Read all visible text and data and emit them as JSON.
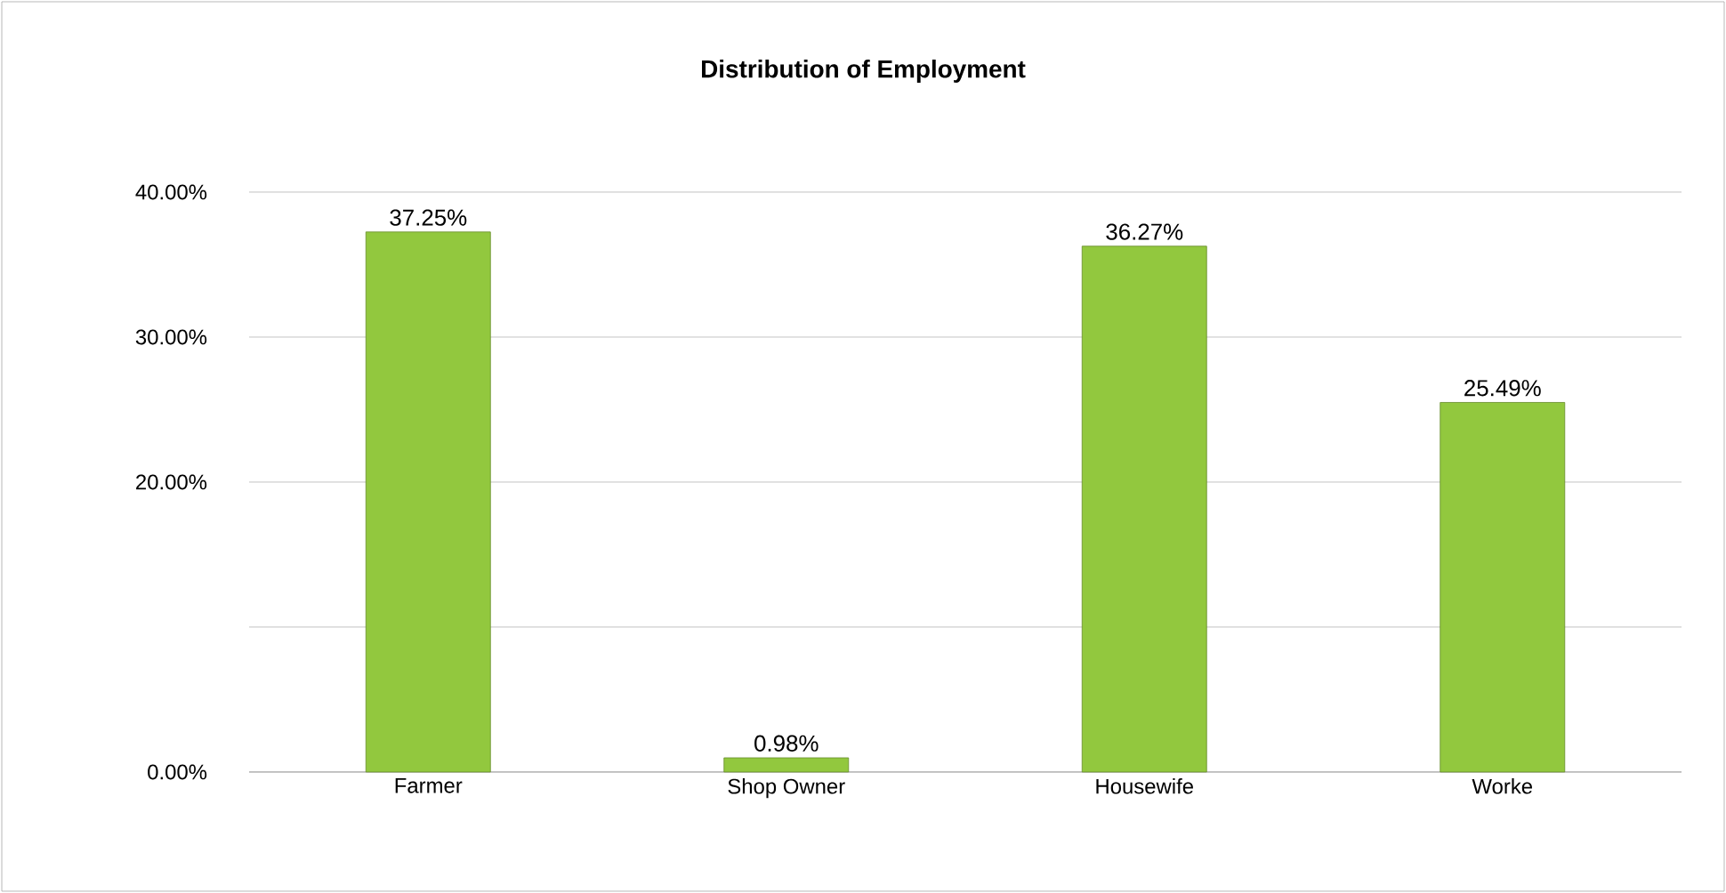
{
  "chart_data": {
    "type": "bar",
    "title": "Distribution of Employment",
    "categories": [
      "Farmer",
      "Shop Owner",
      "Housewife",
      "Worke"
    ],
    "values": [
      37.25,
      0.98,
      36.27,
      25.49
    ],
    "value_labels": [
      "37.25%",
      "0.98%",
      "36.27%",
      "25.49%"
    ],
    "color": "#92c83e",
    "ylim": [
      0,
      40
    ],
    "yticks": [
      {
        "value": 0,
        "label": "0.00%"
      },
      {
        "value": 10,
        "label": null
      },
      {
        "value": 20,
        "label": "20.00%"
      },
      {
        "value": 30,
        "label": "30.00%"
      },
      {
        "value": 40,
        "label": "40.00%"
      }
    ],
    "grid": "y"
  }
}
